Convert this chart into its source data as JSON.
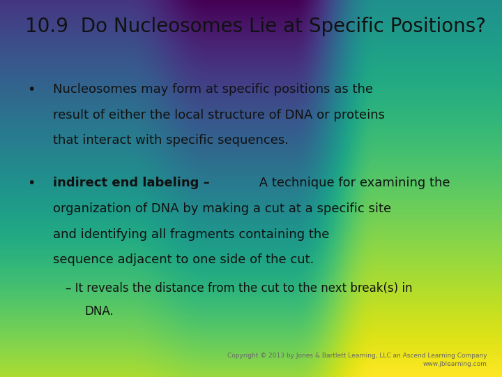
{
  "title": "10.9  Do Nucleosomes Lie at Specific Positions?",
  "title_fontsize": 20,
  "background_top": "#c2b8d8",
  "background_bottom": "#f0eef8",
  "bullet2_bold": "indirect end labeling –",
  "bullet2_rest": " A technique for examining the",
  "copyright": "Copyright © 2013 by Jones & Bartlett Learning, LLC an Ascend Learning Company\nwww.jblearning.com",
  "font_family": "DejaVu Sans",
  "text_color": "#111111",
  "body_fontsize": 13.0,
  "sub_fontsize": 12.0,
  "title_color": "#111111"
}
